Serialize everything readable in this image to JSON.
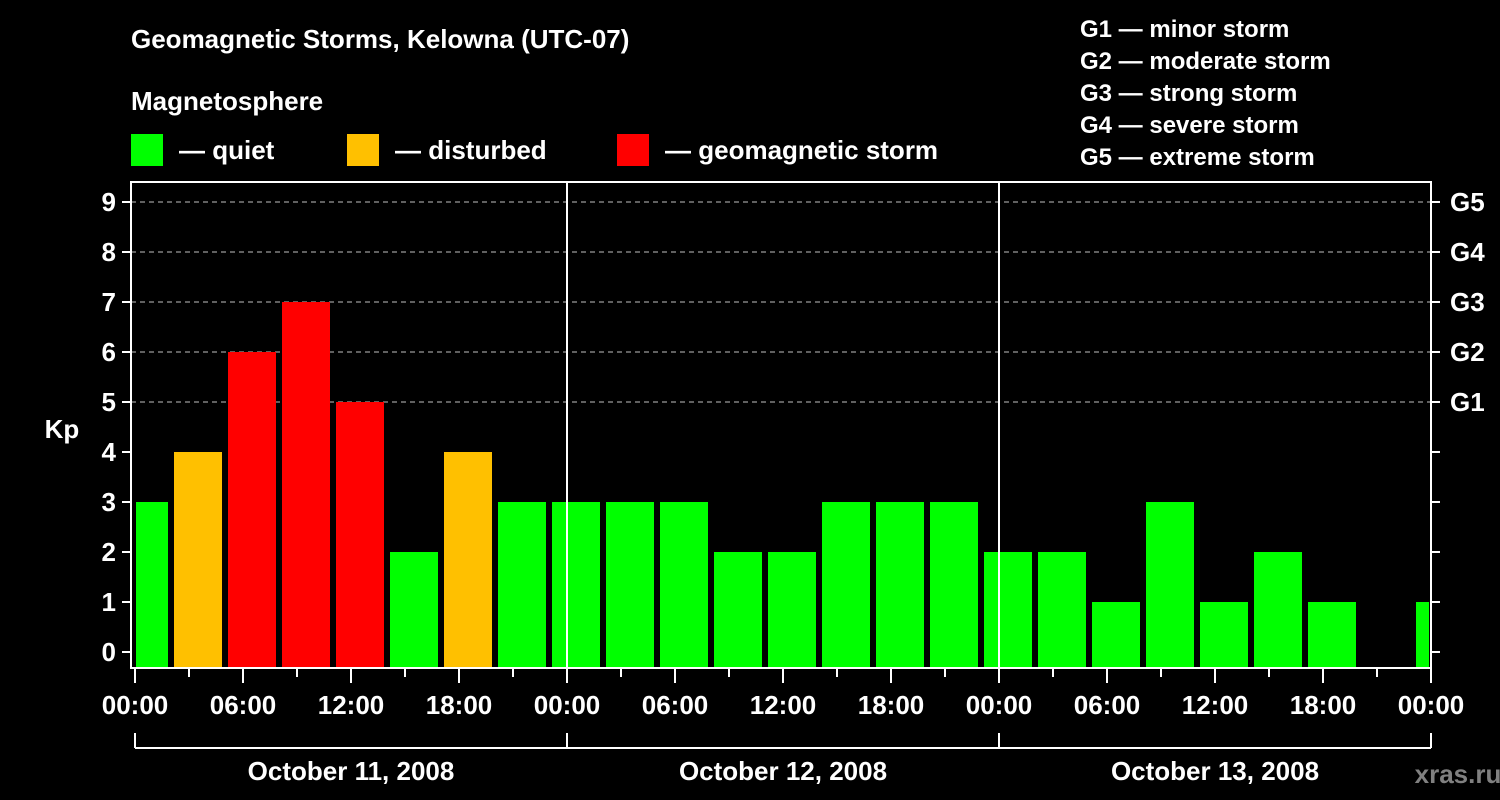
{
  "title": "Geomagnetic Storms, Kelowna (UTC-07)",
  "subtitle": "Magnetosphere",
  "legend": [
    {
      "label": "— quiet",
      "color": "#00ff00"
    },
    {
      "label": "— disturbed",
      "color": "#ffc000"
    },
    {
      "label": "— geomagnetic storm",
      "color": "#ff0000"
    }
  ],
  "g_scale": [
    "G1 — minor storm",
    "G2 — moderate storm",
    "G3 — strong storm",
    "G4 — severe storm",
    "G5 — extreme storm"
  ],
  "watermark": "xras.ru",
  "chart_data": {
    "type": "bar",
    "title": "Geomagnetic Storms, Kelowna (UTC-07)",
    "ylabel": "Kp",
    "ylim": [
      0,
      9
    ],
    "yticks": [
      0,
      1,
      2,
      3,
      4,
      5,
      6,
      7,
      8,
      9
    ],
    "right_ticks": [
      {
        "kp": 5,
        "label": "G1"
      },
      {
        "kp": 6,
        "label": "G2"
      },
      {
        "kp": 7,
        "label": "G3"
      },
      {
        "kp": 8,
        "label": "G4"
      },
      {
        "kp": 9,
        "label": "G5"
      }
    ],
    "xtick_labels": [
      "00:00",
      "06:00",
      "12:00",
      "18:00",
      "00:00",
      "06:00",
      "12:00",
      "18:00",
      "00:00",
      "06:00",
      "12:00",
      "18:00",
      "00:00"
    ],
    "days": [
      "October 11, 2008",
      "October 12, 2008",
      "October 13, 2008"
    ],
    "interval_hours": 3,
    "values": [
      3,
      4,
      6,
      7,
      5,
      2,
      4,
      3,
      3,
      3,
      3,
      2,
      2,
      3,
      3,
      3,
      2,
      2,
      1,
      3,
      1,
      2,
      1,
      0,
      1
    ],
    "colors": {
      "quiet": "#00ff00",
      "disturbed": "#ffc000",
      "storm": "#ff0000"
    },
    "grid": "dashed at Kp 5-9"
  }
}
